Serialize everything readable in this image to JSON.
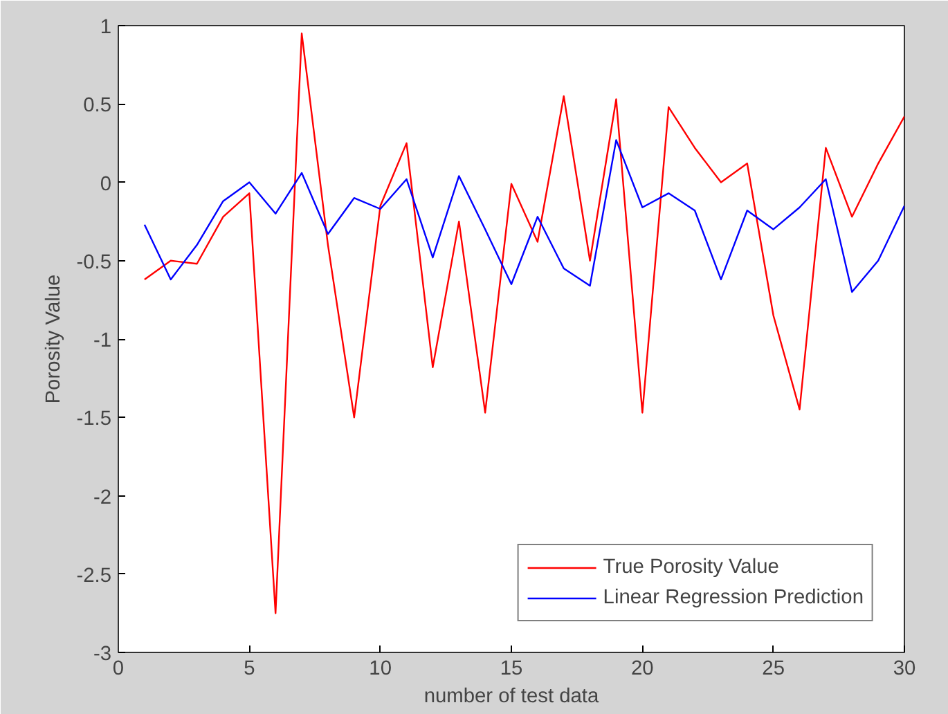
{
  "chart_data": {
    "type": "line",
    "xlabel": "number of test data",
    "ylabel": "Porosity Value",
    "x": [
      1,
      2,
      3,
      4,
      5,
      6,
      7,
      8,
      9,
      10,
      11,
      12,
      13,
      14,
      15,
      16,
      17,
      18,
      19,
      20,
      21,
      22,
      23,
      24,
      25,
      26,
      27,
      28,
      29,
      30
    ],
    "series": [
      {
        "name": "True Porosity Value",
        "color": "#ff0000",
        "values": [
          -0.62,
          -0.5,
          -0.52,
          -0.22,
          -0.07,
          -2.75,
          0.95,
          -0.4,
          -1.5,
          -0.15,
          0.25,
          -1.18,
          -0.25,
          -1.47,
          -0.01,
          -0.38,
          0.55,
          -0.5,
          0.53,
          -1.47,
          0.48,
          0.22,
          0.0,
          0.12,
          -0.85,
          -1.45,
          0.22,
          -0.22,
          0.12,
          0.42
        ]
      },
      {
        "name": "Linear Regression Prediction",
        "color": "#0000ff",
        "values": [
          -0.27,
          -0.62,
          -0.4,
          -0.12,
          0.0,
          -0.2,
          0.06,
          -0.33,
          -0.1,
          -0.17,
          0.02,
          -0.48,
          0.04,
          -0.3,
          -0.65,
          -0.22,
          -0.55,
          -0.66,
          0.27,
          -0.16,
          -0.07,
          -0.18,
          -0.62,
          -0.18,
          -0.3,
          -0.16,
          0.02,
          -0.7,
          -0.5,
          -0.15
        ]
      }
    ],
    "xlim": [
      0,
      30
    ],
    "xticks": [
      0,
      5,
      10,
      15,
      20,
      25,
      30
    ],
    "ylim": [
      -3,
      1
    ],
    "yticks": [
      -3,
      -2.5,
      -2,
      -1.5,
      -1,
      -0.5,
      0,
      0.5,
      1
    ],
    "grid": false,
    "legend": "bottom right",
    "marker": "none",
    "line_style": "solid"
  }
}
